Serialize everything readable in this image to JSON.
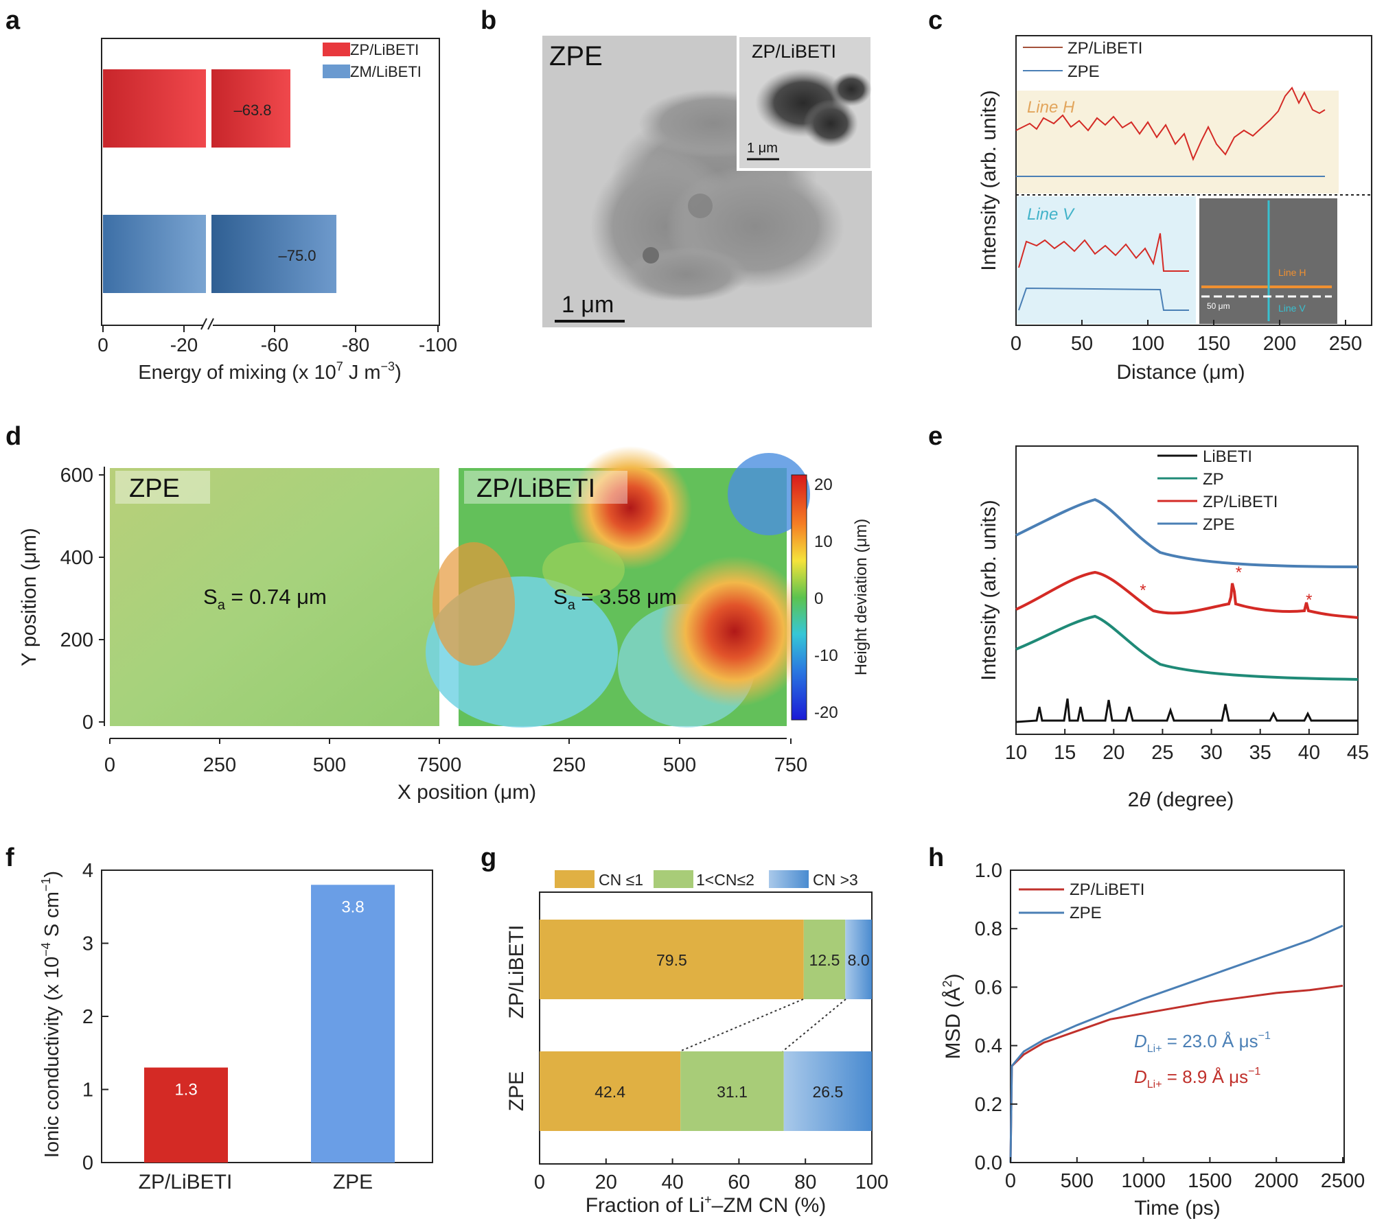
{
  "panel_letters": [
    "a",
    "b",
    "c",
    "d",
    "e",
    "f",
    "g",
    "h"
  ],
  "chart_data": [
    {
      "panel": "a",
      "type": "bar",
      "categories": [
        "ZP/LiBETI",
        "ZM/LiBETI"
      ],
      "values": [
        -63.8,
        -75.0
      ],
      "value_labels": [
        "–63.8",
        "–75.0"
      ],
      "legend": [
        "ZP/LiBETI",
        "ZM/LiBETI"
      ],
      "xlabel": "Energy of mixing (x 10⁷ J m⁻³)",
      "xlabel_main": "Energy of mixing (x 10",
      "xlabel_exp1": "7",
      "xlabel_mid": " J m",
      "xlabel_exp2": "−3",
      "xlabel_end": ")",
      "xticks": [
        "0",
        "-20",
        "-60",
        "-80",
        "-100"
      ],
      "xlim": [
        0,
        -100
      ],
      "axis_break": "between -20 and -60",
      "colors": {
        "ZP/LiBETI": "#e8383d",
        "ZM/LiBETI": "#4a7fb5"
      }
    },
    {
      "panel": "b",
      "type": "image",
      "label": "ZPE",
      "inset_label": "ZP/LiBETI",
      "scale_bar": "1 μm",
      "inset_scale_bar": "1 μm"
    },
    {
      "panel": "c",
      "type": "line",
      "legend": [
        "ZP/LiBETI",
        "ZPE"
      ],
      "region_labels": [
        "Line H",
        "Line V"
      ],
      "ylabel": "Intensity (arb. units)",
      "xlabel": "Distance (μm)",
      "xticks": [
        "0",
        "50",
        "100",
        "150",
        "200",
        "250"
      ],
      "xlim": [
        0,
        250
      ],
      "inset_labels": [
        "Line H",
        "Line V",
        "50 μm"
      ],
      "colors": {
        "ZP/LiBETI": "#d42a25",
        "ZPE": "#4a7fb5"
      }
    },
    {
      "panel": "d",
      "type": "heatmap",
      "maps": [
        {
          "label": "ZPE",
          "sa": "S",
          "sa_sub": "a",
          "sa_val": " = 0.74 μm"
        },
        {
          "label": "ZP/LiBETI",
          "sa": "S",
          "sa_sub": "a",
          "sa_val": " = 3.58 μm"
        }
      ],
      "ylabel": "Y position (μm)",
      "xlabel": "X position (μm)",
      "yticks": [
        "0",
        "200",
        "400",
        "600"
      ],
      "xticks_left": [
        "0",
        "250",
        "500",
        "7500"
      ],
      "xticks_right": [
        "0",
        "250",
        "500",
        "750"
      ],
      "colorbar_label": "Height deviation (μm)",
      "colorbar_ticks": [
        "20",
        "10",
        "0",
        "-10",
        "-20"
      ],
      "colorbar_range": [
        -20,
        20
      ]
    },
    {
      "panel": "e",
      "type": "line",
      "series": [
        "LiBETI",
        "ZP",
        "ZP/LiBETI",
        "ZPE"
      ],
      "ylabel": "Intensity (arb. units)",
      "xlabel": "2θ (degree)",
      "xlabel_num": "2",
      "xlabel_theta": "θ",
      "xlabel_rest": " (degree)",
      "xticks": [
        "10",
        "15",
        "20",
        "25",
        "30",
        "35",
        "40",
        "45"
      ],
      "xlim": [
        10,
        45
      ],
      "star_positions_2theta": [
        23.0,
        32.8,
        40.0
      ],
      "star": "*",
      "colors": {
        "LiBETI": "#111111",
        "ZP": "#1f8a77",
        "ZP/LiBETI": "#d42a25",
        "ZPE": "#4a7fb5"
      }
    },
    {
      "panel": "f",
      "type": "bar",
      "categories": [
        "ZP/LiBETI",
        "ZPE"
      ],
      "values": [
        1.3,
        3.8
      ],
      "value_labels": [
        "1.3",
        "3.8"
      ],
      "ylabel": "Ionic conductivity (x 10⁻⁴ S cm⁻¹)",
      "ylabel_main": "Ionic conductivity (x 10",
      "ylabel_exp1": "−4",
      "ylabel_mid": " S cm",
      "ylabel_exp2": "−1",
      "ylabel_end": ")",
      "yticks": [
        "0",
        "1",
        "2",
        "3",
        "4"
      ],
      "ylim": [
        0,
        4
      ],
      "colors": {
        "ZP/LiBETI": "#d42a25",
        "ZPE": "#6a9ee6"
      }
    },
    {
      "panel": "g",
      "type": "bar",
      "orientation": "horizontal-stacked",
      "categories": [
        "ZP/LiBETI",
        "ZPE"
      ],
      "series": [
        {
          "name": "CN ≤1",
          "values": [
            79.5,
            42.4
          ]
        },
        {
          "name": "1<CN≤2",
          "values": [
            12.5,
            31.1
          ]
        },
        {
          "name": "CN >3",
          "values": [
            8.0,
            26.5
          ]
        }
      ],
      "labels": [
        [
          "79.5",
          "12.5",
          "8.0"
        ],
        [
          "42.4",
          "31.1",
          "26.5"
        ]
      ],
      "xlabel": "Fraction of Li⁺–ZM CN (%)",
      "xlabel_a": "Fraction of Li",
      "xlabel_sup": "+",
      "xlabel_b": "–ZM CN (%)",
      "xticks": [
        "0",
        "20",
        "40",
        "60",
        "80",
        "100"
      ],
      "xlim": [
        0,
        100
      ],
      "colors": {
        "CN ≤1": "#e0b043",
        "1<CN≤2": "#a8cc78",
        "CN >3": "#6aa3d6"
      }
    },
    {
      "panel": "h",
      "type": "line",
      "series": [
        {
          "name": "ZP/LiBETI",
          "x": [
            0,
            10,
            100,
            250,
            500,
            750,
            1000,
            1250,
            1500,
            1750,
            2000,
            2250,
            2500
          ],
          "y": [
            0.0,
            0.33,
            0.37,
            0.41,
            0.45,
            0.49,
            0.51,
            0.53,
            0.55,
            0.565,
            0.58,
            0.59,
            0.605
          ]
        },
        {
          "name": "ZPE",
          "x": [
            0,
            10,
            100,
            250,
            500,
            750,
            1000,
            1250,
            1500,
            1750,
            2000,
            2250,
            2500
          ],
          "y": [
            0.0,
            0.33,
            0.38,
            0.42,
            0.47,
            0.515,
            0.56,
            0.6,
            0.64,
            0.68,
            0.72,
            0.76,
            0.81
          ]
        }
      ],
      "annotations": [
        {
          "d": "D",
          "sub": "Li+",
          "text": " = 23.0 Å μs",
          "exp": "−1",
          "color": "#4a7fb5"
        },
        {
          "d": "D",
          "sub": "Li+",
          "text": " = 8.9 Å μs",
          "exp": "−1",
          "color": "#c0302b"
        }
      ],
      "xlabel": "Time (ps)",
      "ylabel": "MSD (Å²)",
      "ylabel_main": "MSD (Å",
      "ylabel_sup": "2",
      "ylabel_end": ")",
      "xticks": [
        "0",
        "500",
        "1000",
        "1500",
        "2000",
        "2500"
      ],
      "xlim": [
        0,
        2500
      ],
      "yticks": [
        "0.0",
        "0.2",
        "0.4",
        "0.6",
        "0.8",
        "1.0"
      ],
      "ylim": [
        0,
        1.0
      ],
      "colors": {
        "ZP/LiBETI": "#c0302b",
        "ZPE": "#4a7fb5"
      }
    }
  ]
}
